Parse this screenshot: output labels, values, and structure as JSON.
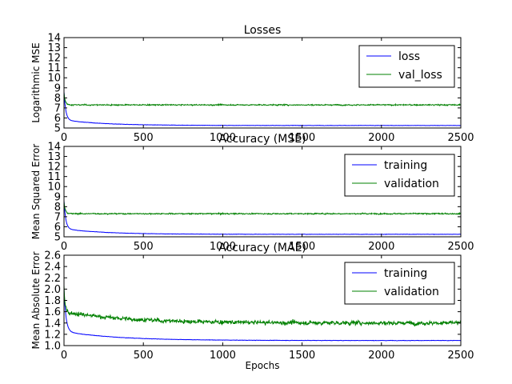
{
  "chart_data": [
    {
      "type": "line",
      "title": "Losses",
      "xlabel": "",
      "ylabel": "Logarithmic MSE",
      "xlim": [
        0,
        2500
      ],
      "ylim": [
        5,
        14
      ],
      "xticks": [
        0,
        500,
        1000,
        1500,
        2000,
        2500
      ],
      "yticks": [
        5,
        6,
        7,
        8,
        9,
        10,
        11,
        12,
        13,
        14
      ],
      "legend": "top-right",
      "grid": false,
      "series": [
        {
          "name": "loss",
          "color": "#0000ff",
          "start": 8.6,
          "floor": 5.25,
          "mid": 5.8,
          "k1": 0.09,
          "k2": 0.004,
          "noise": 0.02,
          "x": [
            0,
            10,
            25,
            50,
            100,
            200,
            500,
            1000,
            1500,
            2000,
            2500
          ],
          "y": [
            8.6,
            7.4,
            6.6,
            6.2,
            5.85,
            5.65,
            5.5,
            5.4,
            5.35,
            5.33,
            5.32
          ]
        },
        {
          "name": "val_loss",
          "color": "#008000",
          "start": 8.5,
          "floor": 7.3,
          "mid": 7.3,
          "k1": 0.12,
          "k2": 0.01,
          "noise": 0.07,
          "x": [
            0,
            10,
            25,
            50,
            100,
            200,
            500,
            1000,
            1500,
            2000,
            2500
          ],
          "y": [
            8.5,
            7.5,
            7.3,
            7.3,
            7.35,
            7.4,
            7.4,
            7.35,
            7.3,
            7.3,
            7.3
          ]
        }
      ]
    },
    {
      "type": "line",
      "title": "Accuracy (MSE)",
      "xlabel": "",
      "ylabel": "Mean Squared Error",
      "xlim": [
        0,
        2500
      ],
      "ylim": [
        5,
        14
      ],
      "xticks": [
        0,
        500,
        1000,
        1500,
        2000,
        2500
      ],
      "yticks": [
        5,
        6,
        7,
        8,
        9,
        10,
        11,
        12,
        13,
        14
      ],
      "legend": "top-right",
      "grid": false,
      "series": [
        {
          "name": "training",
          "color": "#0000ff",
          "start": 8.6,
          "floor": 5.25,
          "mid": 5.8,
          "k1": 0.09,
          "k2": 0.004,
          "noise": 0.02,
          "x": [
            0,
            10,
            25,
            50,
            100,
            200,
            500,
            1000,
            1500,
            2000,
            2500
          ],
          "y": [
            8.6,
            7.4,
            6.6,
            6.2,
            5.85,
            5.65,
            5.5,
            5.4,
            5.35,
            5.33,
            5.32
          ]
        },
        {
          "name": "validation",
          "color": "#008000",
          "start": 8.5,
          "floor": 7.3,
          "mid": 7.3,
          "k1": 0.12,
          "k2": 0.01,
          "noise": 0.07,
          "x": [
            0,
            10,
            25,
            50,
            100,
            200,
            500,
            1000,
            1500,
            2000,
            2500
          ],
          "y": [
            8.5,
            7.5,
            7.3,
            7.3,
            7.35,
            7.4,
            7.4,
            7.35,
            7.3,
            7.3,
            7.3
          ]
        }
      ]
    },
    {
      "type": "line",
      "title": "Accuracy (MAE)",
      "xlabel": "Epochs",
      "ylabel": "Mean Absolute Error",
      "xlim": [
        0,
        2500
      ],
      "ylim": [
        1.0,
        2.6
      ],
      "xticks": [
        0,
        500,
        1000,
        1500,
        2000,
        2500
      ],
      "yticks": [
        "1.0",
        "1.2",
        "1.4",
        "1.6",
        "1.8",
        "2.0",
        "2.2",
        "2.4",
        "2.6"
      ],
      "legend": "top-right",
      "grid": false,
      "series": [
        {
          "name": "training",
          "color": "#0000ff",
          "start": 2.0,
          "floor": 1.09,
          "mid": 1.25,
          "k1": 0.08,
          "k2": 0.003,
          "noise": 0.004,
          "x": [
            0,
            25,
            50,
            100,
            200,
            500,
            1000,
            1500,
            2000,
            2500
          ],
          "y": [
            2.0,
            1.45,
            1.32,
            1.24,
            1.19,
            1.14,
            1.12,
            1.11,
            1.1,
            1.09
          ]
        },
        {
          "name": "validation",
          "color": "#008000",
          "start": 2.05,
          "floor": 1.4,
          "mid": 1.6,
          "k1": 0.15,
          "k2": 0.0025,
          "noise": 0.045,
          "x": [
            0,
            25,
            50,
            100,
            200,
            500,
            1000,
            1500,
            2000,
            2500
          ],
          "y": [
            2.05,
            1.7,
            1.6,
            1.55,
            1.55,
            1.52,
            1.48,
            1.45,
            1.42,
            1.4
          ]
        }
      ]
    }
  ]
}
